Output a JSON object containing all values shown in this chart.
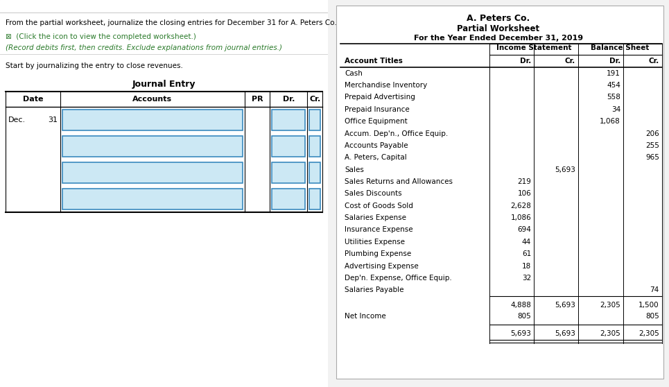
{
  "left_panel": {
    "instruction_line1": "From the partial worksheet, journalize the closing entries for December 31 for A. Peters Co.",
    "instruction_line2_icon": "⊠  (Click the icon to view the completed worksheet.)",
    "instruction_line3": "(Record debits first, then credits. Exclude explanations from journal entries.)",
    "prompt": "Start by journalizing the entry to close revenues.",
    "journal_title": "Journal Entry",
    "col_headers": [
      "Date",
      "Accounts",
      "PR",
      "Dr.",
      "Cr."
    ],
    "date_col": "Dec.",
    "date_num": "31",
    "num_rows": 4,
    "input_box_color": "#cce8f4",
    "input_border_color": "#3a8abf"
  },
  "right_panel": {
    "company": "A. Peters Co.",
    "subtitle": "Partial Worksheet",
    "period": "For the Year Ended December 31, 2019",
    "rows": [
      {
        "account": "Cash",
        "is_dr": "",
        "is_cr": "",
        "bs_dr": "191",
        "bs_cr": ""
      },
      {
        "account": "Merchandise Inventory",
        "is_dr": "",
        "is_cr": "",
        "bs_dr": "454",
        "bs_cr": ""
      },
      {
        "account": "Prepaid Advertising",
        "is_dr": "",
        "is_cr": "",
        "bs_dr": "558",
        "bs_cr": ""
      },
      {
        "account": "Prepaid Insurance",
        "is_dr": "",
        "is_cr": "",
        "bs_dr": "34",
        "bs_cr": ""
      },
      {
        "account": "Office Equipment",
        "is_dr": "",
        "is_cr": "",
        "bs_dr": "1,068",
        "bs_cr": ""
      },
      {
        "account": "Accum. Dep'n., Office Equip.",
        "is_dr": "",
        "is_cr": "",
        "bs_dr": "",
        "bs_cr": "206"
      },
      {
        "account": "Accounts Payable",
        "is_dr": "",
        "is_cr": "",
        "bs_dr": "",
        "bs_cr": "255"
      },
      {
        "account": "A. Peters, Capital",
        "is_dr": "",
        "is_cr": "",
        "bs_dr": "",
        "bs_cr": "965"
      },
      {
        "account": "Sales",
        "is_dr": "",
        "is_cr": "5,693",
        "bs_dr": "",
        "bs_cr": ""
      },
      {
        "account": "Sales Returns and Allowances",
        "is_dr": "219",
        "is_cr": "",
        "bs_dr": "",
        "bs_cr": ""
      },
      {
        "account": "Sales Discounts",
        "is_dr": "106",
        "is_cr": "",
        "bs_dr": "",
        "bs_cr": ""
      },
      {
        "account": "Cost of Goods Sold",
        "is_dr": "2,628",
        "is_cr": "",
        "bs_dr": "",
        "bs_cr": ""
      },
      {
        "account": "Salaries Expense",
        "is_dr": "1,086",
        "is_cr": "",
        "bs_dr": "",
        "bs_cr": ""
      },
      {
        "account": "Insurance Expense",
        "is_dr": "694",
        "is_cr": "",
        "bs_dr": "",
        "bs_cr": ""
      },
      {
        "account": "Utilities Expense",
        "is_dr": "44",
        "is_cr": "",
        "bs_dr": "",
        "bs_cr": ""
      },
      {
        "account": "Plumbing Expense",
        "is_dr": "61",
        "is_cr": "",
        "bs_dr": "",
        "bs_cr": ""
      },
      {
        "account": "Advertising Expense",
        "is_dr": "18",
        "is_cr": "",
        "bs_dr": "",
        "bs_cr": ""
      },
      {
        "account": "Dep'n. Expense, Office Equip.",
        "is_dr": "32",
        "is_cr": "",
        "bs_dr": "",
        "bs_cr": ""
      },
      {
        "account": "Salaries Payable",
        "is_dr": "",
        "is_cr": "",
        "bs_dr": "",
        "bs_cr": "74"
      }
    ],
    "totals1": {
      "is_dr": "4,888",
      "is_cr": "5,693",
      "bs_dr": "2,305",
      "bs_cr": "1,500"
    },
    "net_income_label": "Net Income",
    "net_income": {
      "is_dr": "805",
      "bs_cr": "805"
    },
    "totals2": {
      "is_dr": "5,693",
      "is_cr": "5,693",
      "bs_dr": "2,305",
      "bs_cr": "2,305"
    }
  }
}
